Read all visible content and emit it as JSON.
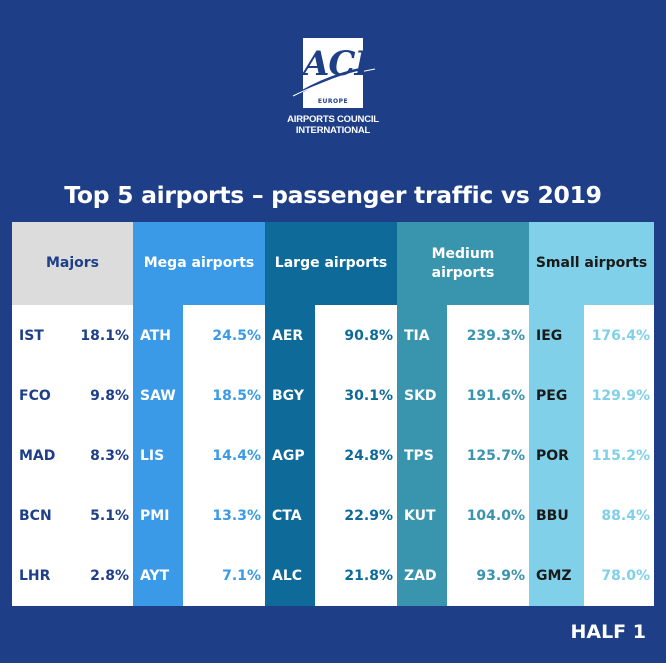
{
  "logo": {
    "letters": "ACI",
    "region": "EUROPE",
    "line1": "AIRPORTS COUNCIL",
    "line2": "INTERNATIONAL"
  },
  "title": "Top 5 airports – passenger traffic vs 2019",
  "footer": "HALF 1",
  "columns": [
    {
      "header": "Majors",
      "head_bg": "#dcdcdc",
      "head_color": "#1e3f88",
      "code_bg": "#ffffff",
      "code_color": "#1e3f88",
      "value_color": "#1e3f88",
      "rows": [
        {
          "code": "IST",
          "value": "18.1%"
        },
        {
          "code": "FCO",
          "value": "9.8%"
        },
        {
          "code": "MAD",
          "value": "8.3%"
        },
        {
          "code": "BCN",
          "value": "5.1%"
        },
        {
          "code": "LHR",
          "value": "2.8%"
        }
      ]
    },
    {
      "header": "Mega airports",
      "head_bg": "#3a9ae8",
      "head_color": "#ffffff",
      "code_bg": "#3a9ae8",
      "code_color": "#ffffff",
      "value_color": "#3a9ae8",
      "rows": [
        {
          "code": "ATH",
          "value": "24.5%"
        },
        {
          "code": "SAW",
          "value": "18.5%"
        },
        {
          "code": "LIS",
          "value": "14.4%"
        },
        {
          "code": "PMI",
          "value": "13.3%"
        },
        {
          "code": "AYT",
          "value": "7.1%"
        }
      ]
    },
    {
      "header": "Large airports",
      "head_bg": "#0e6a99",
      "head_color": "#ffffff",
      "code_bg": "#0e6a99",
      "code_color": "#ffffff",
      "value_color": "#0e6a99",
      "rows": [
        {
          "code": "AER",
          "value": "90.8%"
        },
        {
          "code": "BGY",
          "value": "30.1%"
        },
        {
          "code": "AGP",
          "value": "24.8%"
        },
        {
          "code": "CTA",
          "value": "22.9%"
        },
        {
          "code": "ALC",
          "value": "21.8%"
        }
      ]
    },
    {
      "header": "Medium airports",
      "head_bg": "#3994ae",
      "head_color": "#ffffff",
      "code_bg": "#3994ae",
      "code_color": "#ffffff",
      "value_color": "#3994ae",
      "rows": [
        {
          "code": "TIA",
          "value": "239.3%"
        },
        {
          "code": "SKD",
          "value": "191.6%"
        },
        {
          "code": "TPS",
          "value": "125.7%"
        },
        {
          "code": "KUT",
          "value": "104.0%"
        },
        {
          "code": "ZAD",
          "value": "93.9%"
        }
      ]
    },
    {
      "header": "Small airports",
      "head_bg": "#7fd0e8",
      "head_color": "#1a1a1a",
      "code_bg": "#7fd0e8",
      "code_color": "#1a1a1a",
      "value_color": "#7fd0e8",
      "rows": [
        {
          "code": "IEG",
          "value": "176.4%"
        },
        {
          "code": "PEG",
          "value": "129.9%"
        },
        {
          "code": "POR",
          "value": "115.2%"
        },
        {
          "code": "BBU",
          "value": "88.4%"
        },
        {
          "code": "GMZ",
          "value": "78.0%"
        }
      ]
    }
  ]
}
